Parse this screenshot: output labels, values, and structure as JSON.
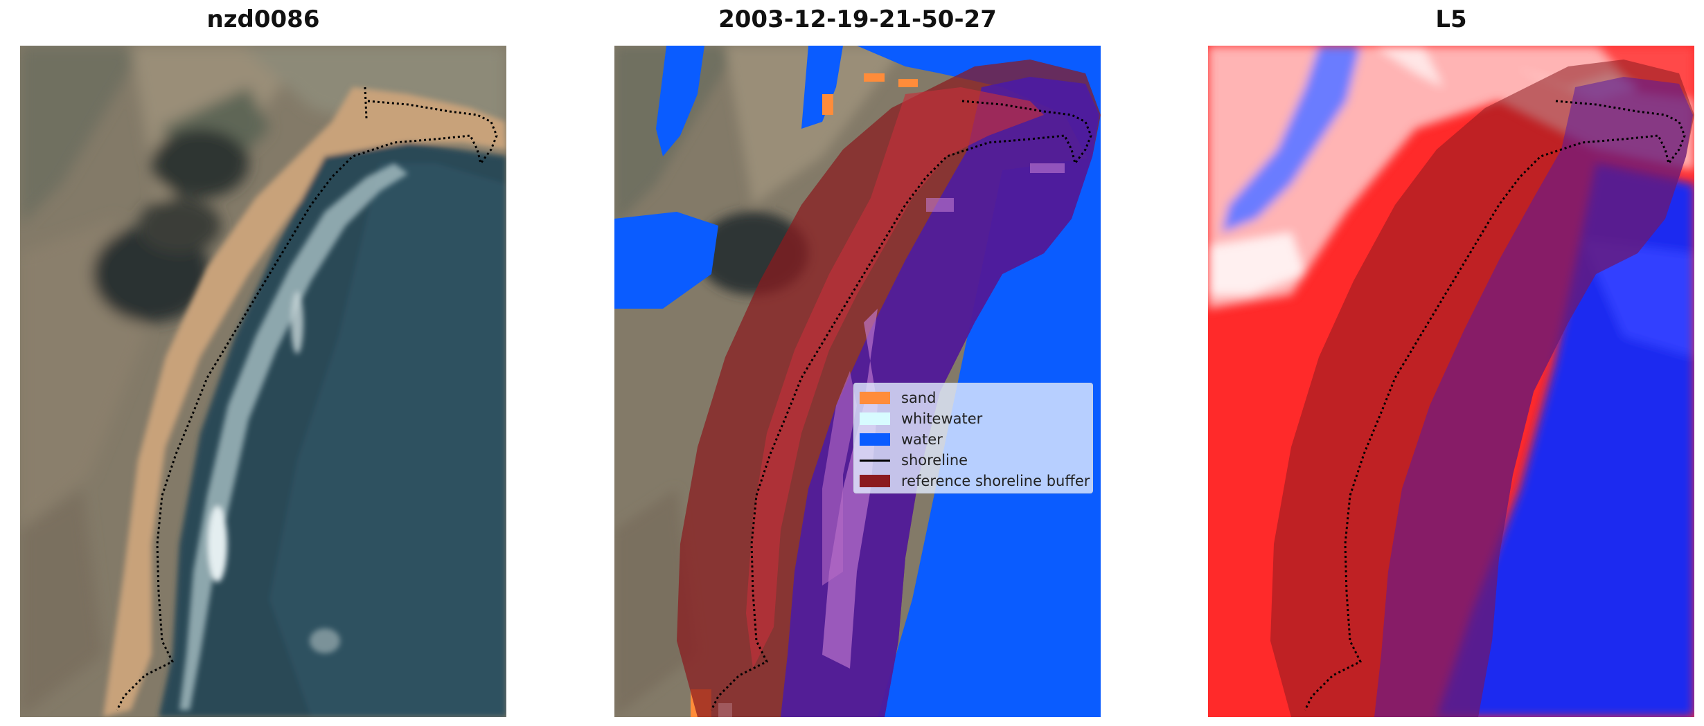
{
  "panels": [
    {
      "title": "nzd0086"
    },
    {
      "title": "2003-12-19-21-50-27"
    },
    {
      "title": "L5"
    }
  ],
  "legend": {
    "items": [
      {
        "label": "sand",
        "color": "#ff8c3a",
        "kind": "patch"
      },
      {
        "label": "whitewater",
        "color": "#d7fbff",
        "kind": "patch"
      },
      {
        "label": "water",
        "color": "#0a5cff",
        "kind": "patch"
      },
      {
        "label": "shoreline",
        "color": "#000000",
        "kind": "line"
      },
      {
        "label": "reference shoreline buffer",
        "color": "#8b1a1f",
        "kind": "patch"
      }
    ]
  },
  "colors": {
    "land": "#7f7766",
    "beach": "#c8a87a",
    "sea": "#2e4e5c",
    "whitewater": "#d7fbff",
    "water_class": "#0a5cff",
    "sand_class": "#ff8c3a",
    "buffer": "#8b1a1f",
    "index_positive": "#ff1414",
    "index_negative": "#1b2cf0"
  }
}
